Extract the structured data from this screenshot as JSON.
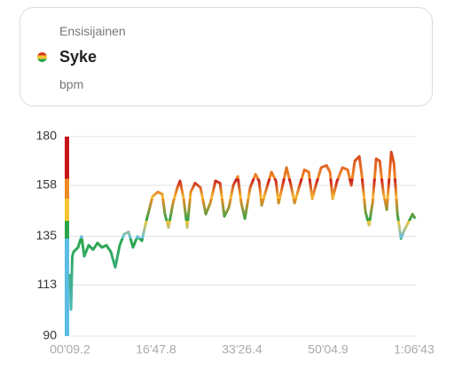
{
  "header": {
    "label": "Ensisijainen",
    "metric": "Syke",
    "unit": "bpm"
  },
  "chart_data": {
    "type": "line",
    "x": [
      9.2,
      20,
      35,
      50,
      102,
      143,
      174,
      225,
      277,
      328,
      380,
      431,
      483,
      534,
      586,
      637,
      689,
      740,
      792,
      843,
      895,
      967,
      1029,
      1080,
      1111,
      1152,
      1204,
      1255,
      1286,
      1328,
      1369,
      1410,
      1461,
      1523,
      1585,
      1637,
      1698,
      1750,
      1801,
      1853,
      1904,
      1956,
      1997,
      2039,
      2100,
      2162,
      2203,
      2234,
      2286,
      2347,
      2399,
      2430,
      2471,
      2522,
      2574,
      2615,
      2667,
      2729,
      2780,
      2821,
      2862,
      2924,
      2986,
      3027,
      3058,
      3109,
      3171,
      3233,
      3274,
      3315,
      3367,
      3398,
      3439,
      3480,
      3521,
      3563,
      3604,
      3645,
      3686,
      3738,
      3769,
      3810,
      3851,
      3892,
      3933,
      3985,
      4016
    ],
    "values": [
      118,
      102,
      126,
      128,
      130,
      135,
      126,
      131,
      129,
      132,
      130,
      131,
      128,
      121,
      131,
      136,
      137,
      130,
      135,
      133,
      142,
      153,
      155,
      154,
      145,
      139,
      150,
      157,
      160,
      152,
      139,
      155,
      159,
      157,
      145,
      150,
      160,
      159,
      144,
      148,
      158,
      162,
      150,
      143,
      157,
      163,
      160,
      149,
      156,
      164,
      160,
      150,
      157,
      166,
      158,
      150,
      157,
      165,
      164,
      152,
      158,
      166,
      167,
      164,
      152,
      160,
      166,
      165,
      158,
      169,
      171,
      162,
      146,
      140,
      150,
      170,
      169,
      155,
      147,
      173,
      168,
      145,
      134,
      138,
      141,
      145,
      143
    ],
    "zones": [
      {
        "from": 90,
        "to": 134,
        "color": "#5bbde4"
      },
      {
        "from": 134,
        "to": 142,
        "color": "#2aa64a"
      },
      {
        "from": 142,
        "to": 152,
        "color": "#f5c431"
      },
      {
        "from": 152,
        "to": 161,
        "color": "#ef8a24"
      },
      {
        "from": 161,
        "to": 180,
        "color": "#c8151b"
      }
    ],
    "xlim": [
      9.2,
      4034
    ],
    "ylim": [
      90,
      180
    ],
    "xticks": [
      {
        "value": 9.2,
        "label": "00'09.2"
      },
      {
        "value": 1007.8,
        "label": "16'47.8"
      },
      {
        "value": 2006.4,
        "label": "33'26.4"
      },
      {
        "value": 3004.9,
        "label": "50'04.9"
      },
      {
        "value": 4003,
        "label": "1:06'43"
      }
    ],
    "yticks": [
      90,
      113,
      135,
      158,
      180
    ],
    "grid": true
  }
}
